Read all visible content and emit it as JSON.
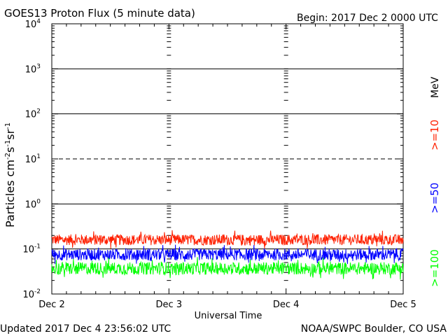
{
  "header": {
    "title": "GOES13 Proton Flux (5 minute data)",
    "begin": "Begin: 2017 Dec 2 0000 UTC"
  },
  "footer": {
    "updated": "Updated 2017 Dec  4 23:56:02 UTC",
    "source": "NOAA/SWPC Boulder, CO USA"
  },
  "chart_data": {
    "type": "line",
    "title": "GOES13 Proton Flux (5 minute data)",
    "xlabel": "Universal Time",
    "ylabel_base": "Particles cm",
    "ylabel_parts": [
      "Particles cm",
      "-2",
      "s",
      "-1",
      "sr",
      "-1"
    ],
    "y_scale": "log",
    "ylim": [
      0.01,
      10000
    ],
    "y_ticks": [
      {
        "value": 0.01,
        "base": "10",
        "exp": "-2"
      },
      {
        "value": 0.1,
        "base": "10",
        "exp": "-1"
      },
      {
        "value": 1,
        "base": "10",
        "exp": "0"
      },
      {
        "value": 10,
        "base": "10",
        "exp": "1"
      },
      {
        "value": 100,
        "base": "10",
        "exp": "2"
      },
      {
        "value": 1000,
        "base": "10",
        "exp": "3"
      },
      {
        "value": 10000,
        "base": "10",
        "exp": "4"
      }
    ],
    "x_ticks": [
      "Dec 2",
      "Dec 3",
      "Dec 4",
      "Dec 5"
    ],
    "xlim_days": [
      0,
      3
    ],
    "threshold_lines": [
      {
        "value": 10,
        "style": "dashed"
      },
      {
        "value": 100,
        "style": "solid"
      },
      {
        "value": 1000,
        "style": "solid"
      },
      {
        "value": 1,
        "style": "solid"
      },
      {
        "value": 0.1,
        "style": "solid"
      }
    ],
    "series": [
      {
        "name": ">=10",
        "color": "#ff2000",
        "median": 0.16,
        "spread": 0.12
      },
      {
        "name": ">=50",
        "color": "#0000ff",
        "median": 0.075,
        "spread": 0.13
      },
      {
        "name": ">=100",
        "color": "#00ff00",
        "median": 0.037,
        "spread": 0.14
      }
    ],
    "unit_label": "MeV",
    "legend_placement": "right"
  }
}
